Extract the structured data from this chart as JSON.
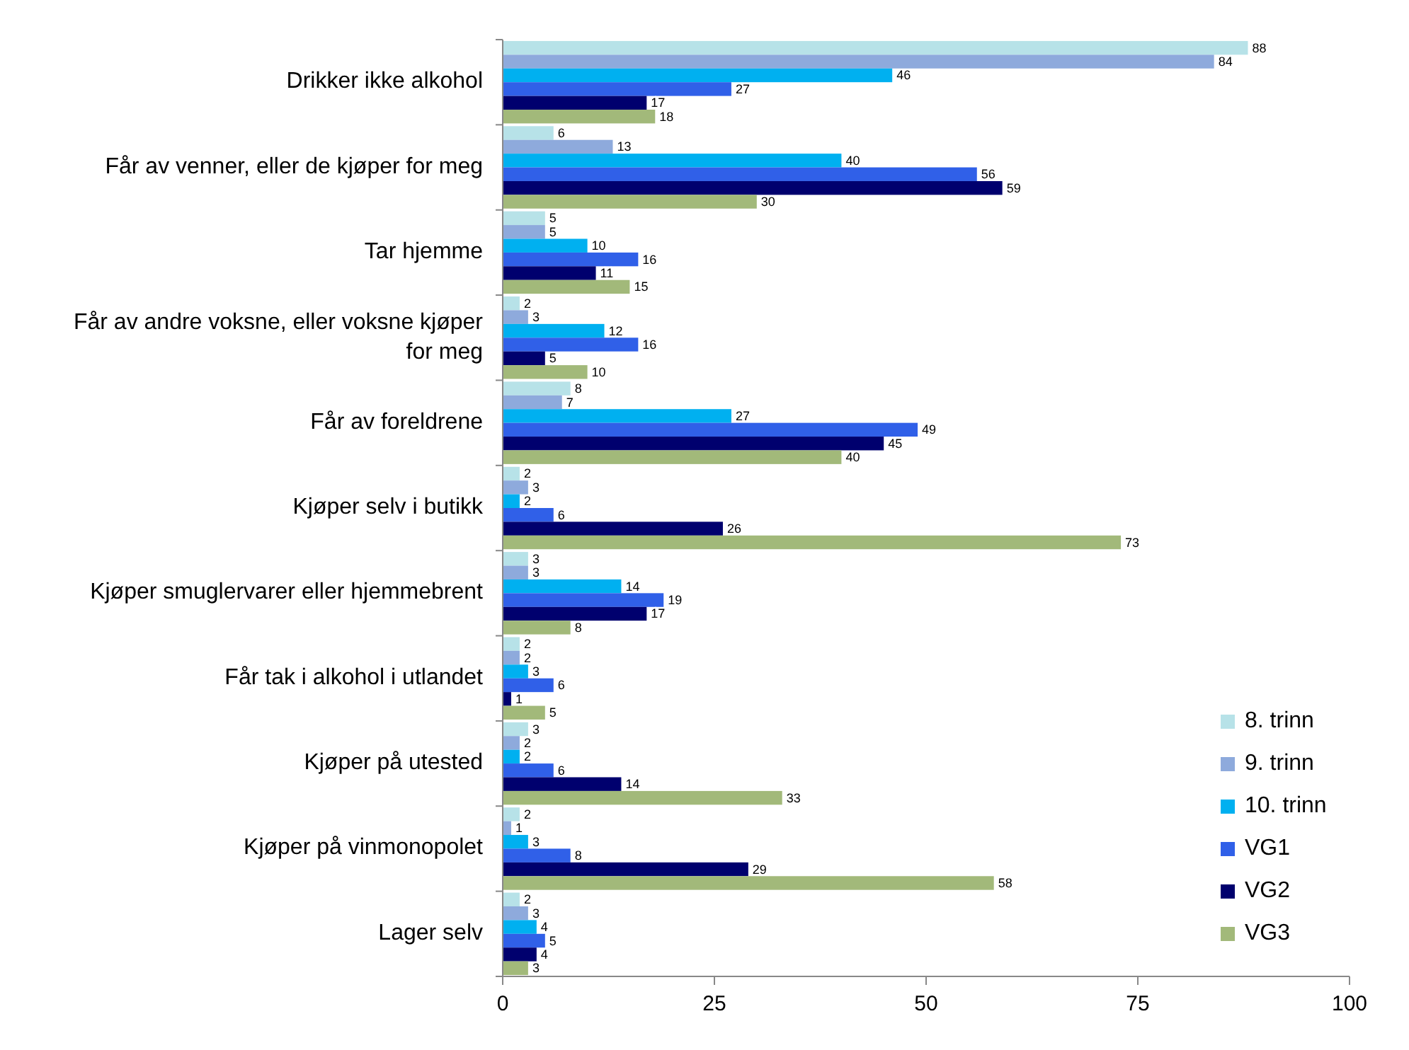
{
  "chart_data": {
    "type": "bar",
    "orientation": "horizontal",
    "categories": [
      "Drikker ikke alkohol",
      "Får av venner, eller de kjøper for meg",
      "Tar hjemme",
      "Får av andre voksne, eller voksne kjøper for meg",
      "Får av foreldrene",
      "Kjøper selv i butikk",
      "Kjøper smuglervarer eller hjemmebrent",
      "Får tak i alkohol i utlandet",
      "Kjøper på utested",
      "Kjøper på vinmonopolet",
      "Lager selv"
    ],
    "series": [
      {
        "name": "8. trinn",
        "color": "#b7e2e8",
        "values": [
          88,
          6,
          5,
          2,
          8,
          2,
          3,
          2,
          3,
          2,
          2
        ]
      },
      {
        "name": "9. trinn",
        "color": "#8eaadc",
        "values": [
          84,
          13,
          5,
          3,
          7,
          3,
          3,
          2,
          2,
          1,
          3
        ]
      },
      {
        "name": "10. trinn",
        "color": "#00b0f0",
        "values": [
          46,
          40,
          10,
          12,
          27,
          2,
          14,
          3,
          2,
          3,
          4
        ]
      },
      {
        "name": "VG1",
        "color": "#3060e8",
        "values": [
          27,
          56,
          16,
          16,
          49,
          6,
          19,
          6,
          6,
          8,
          5
        ]
      },
      {
        "name": "VG2",
        "color": "#00006e",
        "values": [
          17,
          59,
          11,
          5,
          45,
          26,
          17,
          1,
          14,
          29,
          4
        ]
      },
      {
        "name": "VG3",
        "color": "#a2b97a",
        "values": [
          18,
          30,
          15,
          10,
          40,
          73,
          8,
          5,
          33,
          58,
          3
        ]
      }
    ],
    "xlim": [
      0,
      100
    ],
    "xticks": [
      0,
      25,
      50,
      75,
      100
    ],
    "data_labels": true,
    "legend": "bottom right",
    "grid": false
  }
}
